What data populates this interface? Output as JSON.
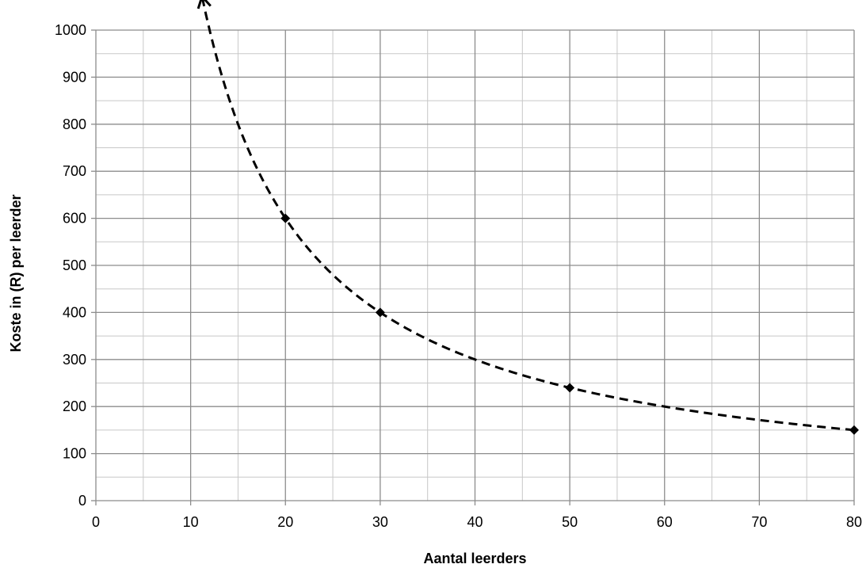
{
  "chart_data": {
    "type": "line",
    "title": "",
    "xlabel": "Aantal leerders",
    "ylabel": "Koste in (R) per leerder",
    "xlim": [
      0,
      80
    ],
    "ylim": [
      0,
      1000
    ],
    "x_ticks": [
      0,
      10,
      20,
      30,
      40,
      50,
      60,
      70,
      80
    ],
    "y_ticks": [
      0,
      100,
      200,
      300,
      400,
      500,
      600,
      700,
      800,
      900,
      1000
    ],
    "grid": true,
    "minor_grid": true,
    "legend": "none",
    "series": [
      {
        "line_style": "dashed",
        "color": "#000000",
        "marker": "diamond",
        "arrow_at_start": true,
        "curve": "y = 12000 / x",
        "curve_x_range": [
          11.2,
          80
        ],
        "x": [
          20,
          30,
          50,
          80
        ],
        "values": [
          600,
          400,
          240,
          150
        ]
      }
    ]
  }
}
